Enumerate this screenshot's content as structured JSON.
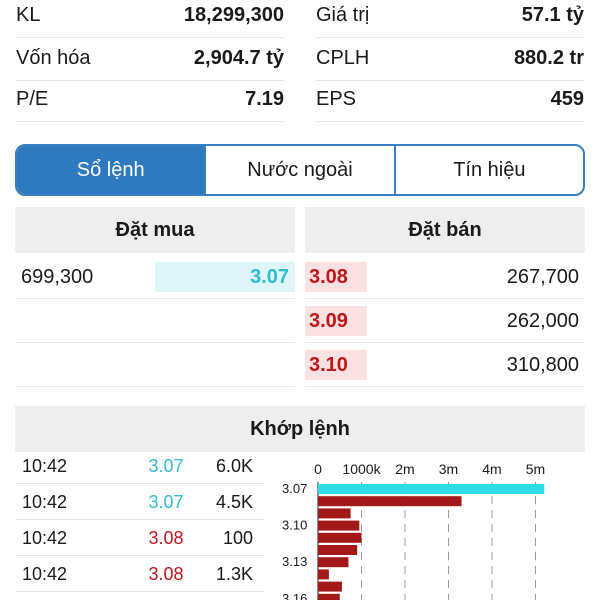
{
  "stats": {
    "rows": [
      {
        "left_label": "KL",
        "left_value": "18,299,300",
        "right_label": "Giá trị",
        "right_value": "57.1 tỷ"
      },
      {
        "left_label": "Vốn hóa",
        "left_value": "2,904.7 tỷ",
        "right_label": "CPLH",
        "right_value": "880.2 tr"
      },
      {
        "left_label": "P/E",
        "left_value": "7.19",
        "right_label": "EPS",
        "right_value": "459"
      }
    ]
  },
  "tabs": {
    "items": [
      "Sổ lệnh",
      "Nước ngoài",
      "Tín hiệu"
    ],
    "active_index": 0
  },
  "order_book": {
    "buy_header": "Đặt mua",
    "sell_header": "Đặt bán",
    "buy": [
      {
        "volume": "699,300",
        "price": "3.07"
      }
    ],
    "sell": [
      {
        "price": "3.08",
        "volume": "267,700"
      },
      {
        "price": "3.09",
        "volume": "262,000"
      },
      {
        "price": "3.10",
        "volume": "310,800"
      }
    ]
  },
  "matched": {
    "header": "Khớp lệnh",
    "trades": [
      {
        "time": "10:42",
        "price": "3.07",
        "volume": "6.0K",
        "direction": "up"
      },
      {
        "time": "10:42",
        "price": "3.07",
        "volume": "4.5K",
        "direction": "up"
      },
      {
        "time": "10:42",
        "price": "3.08",
        "volume": "100",
        "direction": "down"
      },
      {
        "time": "10:42",
        "price": "3.08",
        "volume": "1.3K",
        "direction": "down"
      }
    ]
  },
  "colors": {
    "accent": "#2f7abf",
    "buy": "#2fbdd0",
    "sell": "#c0161c",
    "sell_bar": "#a31919",
    "buy_bar": "#2fdde8"
  },
  "chart_data": {
    "type": "bar",
    "orientation": "horizontal",
    "x_ticks": [
      "0",
      "1000k",
      "2m",
      "3m",
      "4m",
      "5m"
    ],
    "x_tick_values": [
      0,
      1000000,
      2000000,
      3000000,
      4000000,
      5000000
    ],
    "xlim": [
      0,
      5200000
    ],
    "y_tick_labels": [
      "3.07",
      "3.10",
      "3.13",
      "3.16"
    ],
    "categories": [
      "3.07",
      "3.08",
      "3.09",
      "3.10",
      "3.11",
      "3.12",
      "3.13",
      "3.14",
      "3.15",
      "3.16"
    ],
    "values": [
      5200000,
      3300000,
      750000,
      950000,
      1000000,
      900000,
      700000,
      250000,
      550000,
      500000
    ],
    "bar_colors": [
      "buy",
      "sell",
      "sell",
      "sell",
      "sell",
      "sell",
      "sell",
      "sell",
      "sell",
      "sell"
    ],
    "grid": true
  }
}
